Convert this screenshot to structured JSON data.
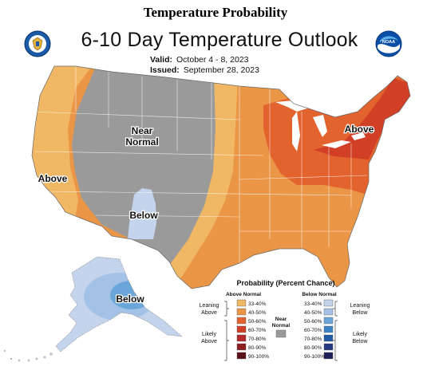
{
  "page_heading": "Temperature Probability",
  "title": "6-10 Day Temperature Outlook",
  "valid": {
    "label": "Valid:",
    "value": "October 4 - 8, 2023"
  },
  "issued": {
    "label": "Issued:",
    "value": "September 28, 2023"
  },
  "region_labels": {
    "near_normal_line1": "Near",
    "near_normal_line2": "Normal",
    "above_west": "Above",
    "above_east": "Above",
    "below_southwest": "Below",
    "below_alaska": "Below"
  },
  "logos": {
    "left": "noaa-commerce-seal",
    "right": "noaa-logo",
    "right_text": "NOAA"
  },
  "legend": {
    "title": "Probability (Percent Chance)",
    "above_header": "Above Normal",
    "below_header": "Below Normal",
    "near_label_line1": "Near",
    "near_label_line2": "Normal",
    "leaning_above_1": "Leaning",
    "leaning_above_2": "Above",
    "likely_above_1": "Likely",
    "likely_above_2": "Above",
    "leaning_below_1": "Leaning",
    "leaning_below_2": "Below",
    "likely_below_1": "Likely",
    "likely_below_2": "Below",
    "above_bins": [
      {
        "label": "33-40%",
        "color": "#f0b865"
      },
      {
        "label": "40-50%",
        "color": "#ea9646"
      },
      {
        "label": "50-60%",
        "color": "#e2632e"
      },
      {
        "label": "60-70%",
        "color": "#d13f26"
      },
      {
        "label": "70-80%",
        "color": "#b62a2e"
      },
      {
        "label": "80-90%",
        "color": "#8e1d22"
      },
      {
        "label": "90-100%",
        "color": "#5a1016"
      }
    ],
    "below_bins": [
      {
        "label": "33-40%",
        "color": "#c3d4ec"
      },
      {
        "label": "40-50%",
        "color": "#a3c2e6"
      },
      {
        "label": "50-60%",
        "color": "#6aa6da"
      },
      {
        "label": "60-70%",
        "color": "#3c84c6"
      },
      {
        "label": "70-80%",
        "color": "#215ba3"
      },
      {
        "label": "80-90%",
        "color": "#243a80"
      },
      {
        "label": "90-100%",
        "color": "#1e2157"
      }
    ],
    "near_color": "#9a9a9a"
  },
  "colors": {
    "near_normal": "#9a9a9a",
    "above_33_40": "#f0b865",
    "above_40_50": "#ea9646",
    "above_50_60": "#e2632e",
    "above_60_70": "#d13f26",
    "below_33_40": "#c3d4ec",
    "below_40_50": "#a3c2e6",
    "below_50_60": "#6aa6da"
  }
}
